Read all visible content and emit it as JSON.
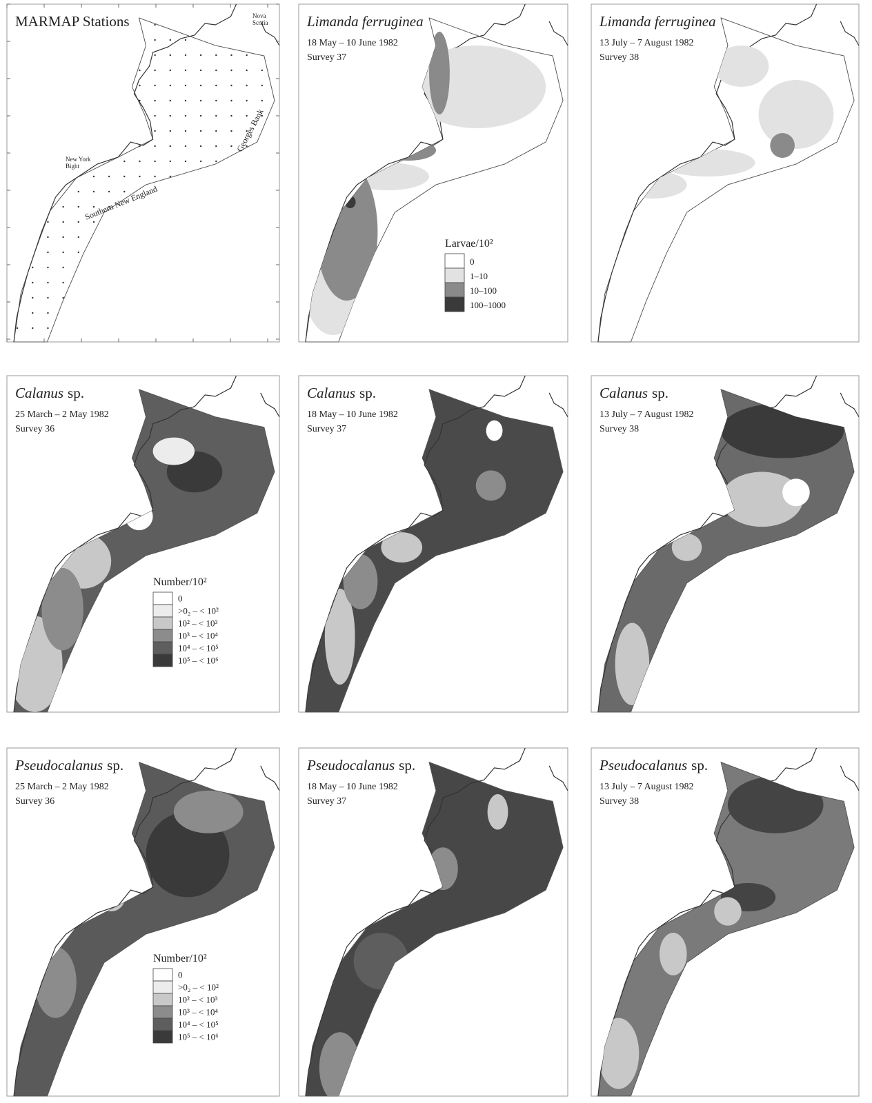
{
  "panels": [
    {
      "title": {
        "plain": "MARMAP Stations"
      },
      "labels": [
        [
          "Nova",
          "Scotia"
        ],
        [
          "New York",
          "Bight"
        ],
        [
          "Georges Bank"
        ],
        [
          "Southern New England"
        ]
      ]
    },
    {
      "title": {
        "italic": "Limanda ferruginea"
      },
      "dates": "18 May – 10 June 1982",
      "survey": "Survey 37",
      "legend": {
        "title": "Larvae/10²",
        "items": [
          {
            "label": "0",
            "color": "#ffffff"
          },
          {
            "label": "1–10",
            "color": "#e2e2e2"
          },
          {
            "label": "10–100",
            "color": "#8a8a8a"
          },
          {
            "label": "100–1000",
            "color": "#3a3a3a"
          }
        ]
      }
    },
    {
      "title": {
        "italic": "Limanda ferruginea"
      },
      "dates": "13 July – 7 August 1982",
      "survey": "Survey 38"
    },
    {
      "title": {
        "italic": "Calanus",
        "plain": "sp."
      },
      "dates": "25 March – 2 May 1982",
      "survey": "Survey 36",
      "legend": {
        "title": "Number/10²",
        "items": [
          {
            "label": "0",
            "color": "#ffffff"
          },
          {
            "label": ">0₂ – < 10²",
            "color": "#ececec"
          },
          {
            "label": "10² – < 10³",
            "color": "#c8c8c8"
          },
          {
            "label": "10³ – < 10⁴",
            "color": "#8c8c8c"
          },
          {
            "label": "10⁴ – < 10⁵",
            "color": "#5e5e5e"
          },
          {
            "label": "10⁵ – < 10⁶",
            "color": "#3a3a3a"
          }
        ]
      }
    },
    {
      "title": {
        "italic": "Calanus",
        "plain": "sp."
      },
      "dates": "18 May – 10 June 1982",
      "survey": "Survey 37"
    },
    {
      "title": {
        "italic": "Calanus",
        "plain": "sp."
      },
      "dates": "13 July – 7 August 1982",
      "survey": "Survey 38"
    },
    {
      "title": {
        "italic": "Pseudocalanus",
        "plain": "sp."
      },
      "dates": "25 March – 2 May 1982",
      "survey": "Survey 36",
      "legend": {
        "title": "Number/10²",
        "items": [
          {
            "label": "0",
            "color": "#ffffff"
          },
          {
            "label": ">0₂ – < 10²",
            "color": "#ececec"
          },
          {
            "label": "10² – < 10³",
            "color": "#c8c8c8"
          },
          {
            "label": "10³ – < 10⁴",
            "color": "#8c8c8c"
          },
          {
            "label": "10⁴ – < 10⁵",
            "color": "#5e5e5e"
          },
          {
            "label": "10⁵ – < 10⁶",
            "color": "#3a3a3a"
          }
        ]
      }
    },
    {
      "title": {
        "italic": "Pseudocalanus",
        "plain": "sp."
      },
      "dates": "18 May – 10 June 1982",
      "survey": "Survey 37"
    },
    {
      "title": {
        "italic": "Pseudocalanus",
        "plain": "sp."
      },
      "dates": "13 July – 7 August 1982",
      "survey": "Survey 38"
    }
  ]
}
